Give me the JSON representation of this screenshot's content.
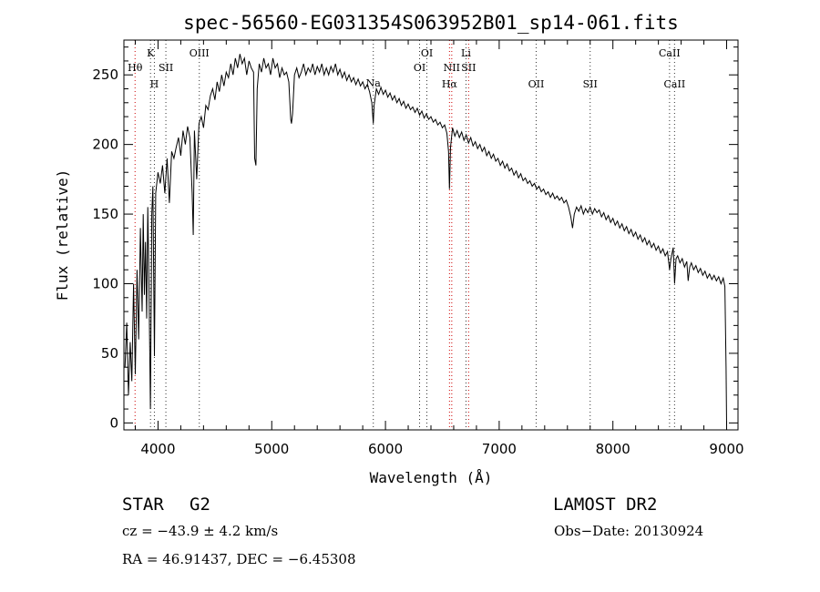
{
  "chart_data": {
    "type": "line",
    "title": "spec-56560-EG031354S063952B01_sp14-061.fits",
    "xlabel": "Wavelength (Å)",
    "ylabel": "Flux (relative)",
    "xlim": [
      3700,
      9100
    ],
    "ylim": [
      -5,
      275
    ],
    "x_ticks": [
      4000,
      5000,
      6000,
      7000,
      8000,
      9000
    ],
    "y_ticks": [
      0,
      50,
      100,
      150,
      200,
      250
    ],
    "grid": false,
    "series": [
      {
        "color": "#000000",
        "points": [
          [
            3710,
            40
          ],
          [
            3725,
            72
          ],
          [
            3740,
            20
          ],
          [
            3755,
            58
          ],
          [
            3770,
            30
          ],
          [
            3785,
            100
          ],
          [
            3800,
            35
          ],
          [
            3815,
            110
          ],
          [
            3830,
            60
          ],
          [
            3845,
            140
          ],
          [
            3860,
            80
          ],
          [
            3870,
            150
          ],
          [
            3880,
            92
          ],
          [
            3890,
            130
          ],
          [
            3900,
            75
          ],
          [
            3910,
            155
          ],
          [
            3920,
            100
          ],
          [
            3933,
            10
          ],
          [
            3945,
            150
          ],
          [
            3955,
            170
          ],
          [
            3968,
            48
          ],
          [
            3980,
            165
          ],
          [
            4000,
            180
          ],
          [
            4020,
            172
          ],
          [
            4040,
            185
          ],
          [
            4060,
            165
          ],
          [
            4080,
            190
          ],
          [
            4100,
            158
          ],
          [
            4120,
            195
          ],
          [
            4140,
            190
          ],
          [
            4160,
            198
          ],
          [
            4180,
            205
          ],
          [
            4200,
            192
          ],
          [
            4220,
            210
          ],
          [
            4240,
            200
          ],
          [
            4260,
            213
          ],
          [
            4280,
            205
          ],
          [
            4300,
            165
          ],
          [
            4310,
            135
          ],
          [
            4320,
            210
          ],
          [
            4340,
            175
          ],
          [
            4360,
            215
          ],
          [
            4380,
            220
          ],
          [
            4400,
            212
          ],
          [
            4420,
            228
          ],
          [
            4440,
            225
          ],
          [
            4460,
            235
          ],
          [
            4480,
            240
          ],
          [
            4500,
            232
          ],
          [
            4520,
            245
          ],
          [
            4540,
            238
          ],
          [
            4560,
            250
          ],
          [
            4580,
            242
          ],
          [
            4600,
            252
          ],
          [
            4620,
            248
          ],
          [
            4640,
            258
          ],
          [
            4660,
            250
          ],
          [
            4680,
            262
          ],
          [
            4700,
            255
          ],
          [
            4720,
            265
          ],
          [
            4740,
            258
          ],
          [
            4760,
            262
          ],
          [
            4780,
            250
          ],
          [
            4800,
            260
          ],
          [
            4820,
            255
          ],
          [
            4840,
            252
          ],
          [
            4850,
            190
          ],
          [
            4861,
            185
          ],
          [
            4872,
            240
          ],
          [
            4890,
            258
          ],
          [
            4910,
            252
          ],
          [
            4930,
            262
          ],
          [
            4950,
            255
          ],
          [
            4970,
            258
          ],
          [
            4990,
            250
          ],
          [
            5010,
            262
          ],
          [
            5030,
            255
          ],
          [
            5050,
            258
          ],
          [
            5070,
            248
          ],
          [
            5090,
            255
          ],
          [
            5110,
            250
          ],
          [
            5130,
            252
          ],
          [
            5150,
            245
          ],
          [
            5167,
            218
          ],
          [
            5173,
            215
          ],
          [
            5183,
            222
          ],
          [
            5200,
            250
          ],
          [
            5220,
            255
          ],
          [
            5240,
            248
          ],
          [
            5260,
            252
          ],
          [
            5280,
            258
          ],
          [
            5300,
            250
          ],
          [
            5320,
            255
          ],
          [
            5340,
            252
          ],
          [
            5360,
            258
          ],
          [
            5380,
            250
          ],
          [
            5400,
            256
          ],
          [
            5420,
            252
          ],
          [
            5440,
            258
          ],
          [
            5460,
            250
          ],
          [
            5480,
            255
          ],
          [
            5500,
            250
          ],
          [
            5520,
            256
          ],
          [
            5540,
            252
          ],
          [
            5560,
            258
          ],
          [
            5580,
            250
          ],
          [
            5600,
            254
          ],
          [
            5620,
            248
          ],
          [
            5640,
            252
          ],
          [
            5660,
            246
          ],
          [
            5680,
            250
          ],
          [
            5700,
            245
          ],
          [
            5720,
            248
          ],
          [
            5740,
            243
          ],
          [
            5760,
            247
          ],
          [
            5780,
            242
          ],
          [
            5800,
            245
          ],
          [
            5820,
            240
          ],
          [
            5840,
            243
          ],
          [
            5860,
            238
          ],
          [
            5880,
            230
          ],
          [
            5893,
            215
          ],
          [
            5900,
            228
          ],
          [
            5920,
            240
          ],
          [
            5940,
            236
          ],
          [
            5960,
            241
          ],
          [
            5980,
            236
          ],
          [
            6000,
            239
          ],
          [
            6020,
            234
          ],
          [
            6040,
            237
          ],
          [
            6060,
            232
          ],
          [
            6080,
            235
          ],
          [
            6100,
            230
          ],
          [
            6120,
            233
          ],
          [
            6140,
            228
          ],
          [
            6160,
            231
          ],
          [
            6180,
            226
          ],
          [
            6200,
            229
          ],
          [
            6220,
            225
          ],
          [
            6240,
            227
          ],
          [
            6260,
            223
          ],
          [
            6280,
            226
          ],
          [
            6300,
            221
          ],
          [
            6320,
            224
          ],
          [
            6340,
            219
          ],
          [
            6360,
            222
          ],
          [
            6380,
            218
          ],
          [
            6400,
            220
          ],
          [
            6420,
            216
          ],
          [
            6440,
            218
          ],
          [
            6460,
            214
          ],
          [
            6480,
            216
          ],
          [
            6500,
            212
          ],
          [
            6520,
            214
          ],
          [
            6540,
            208
          ],
          [
            6555,
            195
          ],
          [
            6563,
            168
          ],
          [
            6572,
            198
          ],
          [
            6590,
            212
          ],
          [
            6610,
            206
          ],
          [
            6630,
            210
          ],
          [
            6650,
            205
          ],
          [
            6670,
            209
          ],
          [
            6690,
            203
          ],
          [
            6710,
            207
          ],
          [
            6730,
            201
          ],
          [
            6750,
            205
          ],
          [
            6770,
            199
          ],
          [
            6790,
            202
          ],
          [
            6810,
            197
          ],
          [
            6830,
            200
          ],
          [
            6850,
            195
          ],
          [
            6870,
            198
          ],
          [
            6890,
            192
          ],
          [
            6910,
            195
          ],
          [
            6930,
            190
          ],
          [
            6950,
            193
          ],
          [
            6970,
            188
          ],
          [
            6990,
            190
          ],
          [
            7010,
            185
          ],
          [
            7030,
            188
          ],
          [
            7050,
            183
          ],
          [
            7070,
            186
          ],
          [
            7090,
            181
          ],
          [
            7110,
            183
          ],
          [
            7130,
            178
          ],
          [
            7150,
            181
          ],
          [
            7170,
            176
          ],
          [
            7190,
            179
          ],
          [
            7210,
            174
          ],
          [
            7230,
            176
          ],
          [
            7250,
            172
          ],
          [
            7270,
            174
          ],
          [
            7290,
            170
          ],
          [
            7310,
            172
          ],
          [
            7330,
            168
          ],
          [
            7350,
            170
          ],
          [
            7370,
            166
          ],
          [
            7390,
            168
          ],
          [
            7410,
            164
          ],
          [
            7430,
            166
          ],
          [
            7450,
            162
          ],
          [
            7470,
            165
          ],
          [
            7490,
            161
          ],
          [
            7510,
            163
          ],
          [
            7530,
            160
          ],
          [
            7550,
            162
          ],
          [
            7570,
            158
          ],
          [
            7590,
            160
          ],
          [
            7610,
            155
          ],
          [
            7630,
            148
          ],
          [
            7645,
            140
          ],
          [
            7660,
            150
          ],
          [
            7680,
            155
          ],
          [
            7700,
            152
          ],
          [
            7720,
            156
          ],
          [
            7740,
            150
          ],
          [
            7760,
            154
          ],
          [
            7780,
            151
          ],
          [
            7800,
            155
          ],
          [
            7820,
            150
          ],
          [
            7840,
            154
          ],
          [
            7860,
            151
          ],
          [
            7880,
            153
          ],
          [
            7900,
            148
          ],
          [
            7920,
            151
          ],
          [
            7940,
            146
          ],
          [
            7960,
            149
          ],
          [
            7980,
            144
          ],
          [
            8000,
            147
          ],
          [
            8020,
            142
          ],
          [
            8040,
            145
          ],
          [
            8060,
            140
          ],
          [
            8080,
            143
          ],
          [
            8100,
            138
          ],
          [
            8120,
            141
          ],
          [
            8140,
            136
          ],
          [
            8160,
            139
          ],
          [
            8180,
            134
          ],
          [
            8200,
            137
          ],
          [
            8220,
            132
          ],
          [
            8240,
            135
          ],
          [
            8260,
            130
          ],
          [
            8280,
            133
          ],
          [
            8300,
            128
          ],
          [
            8320,
            131
          ],
          [
            8340,
            126
          ],
          [
            8360,
            129
          ],
          [
            8380,
            124
          ],
          [
            8400,
            127
          ],
          [
            8420,
            122
          ],
          [
            8440,
            125
          ],
          [
            8460,
            120
          ],
          [
            8480,
            123
          ],
          [
            8498,
            110
          ],
          [
            8510,
            118
          ],
          [
            8530,
            126
          ],
          [
            8542,
            100
          ],
          [
            8555,
            118
          ],
          [
            8570,
            120
          ],
          [
            8590,
            115
          ],
          [
            8610,
            118
          ],
          [
            8630,
            112
          ],
          [
            8650,
            116
          ],
          [
            8662,
            102
          ],
          [
            8675,
            112
          ],
          [
            8690,
            115
          ],
          [
            8710,
            110
          ],
          [
            8730,
            113
          ],
          [
            8750,
            108
          ],
          [
            8770,
            111
          ],
          [
            8790,
            106
          ],
          [
            8810,
            109
          ],
          [
            8830,
            104
          ],
          [
            8850,
            107
          ],
          [
            8870,
            103
          ],
          [
            8890,
            106
          ],
          [
            8910,
            102
          ],
          [
            8930,
            105
          ],
          [
            8950,
            100
          ],
          [
            8970,
            104
          ],
          [
            8985,
            98
          ],
          [
            8995,
            40
          ],
          [
            9000,
            -2
          ]
        ]
      }
    ],
    "line_markers": [
      {
        "label": "Hθ",
        "x": 3798,
        "row": 2,
        "color": "#cc0000"
      },
      {
        "label": "K",
        "x": 3934,
        "row": 1,
        "color": "#333333"
      },
      {
        "label": "H",
        "x": 3968,
        "row": 3,
        "color": "#333333"
      },
      {
        "label": "SII",
        "x": 4069,
        "row": 2,
        "color": "#333333"
      },
      {
        "label": "OIII",
        "x": 4363,
        "row": 1,
        "color": "#333333"
      },
      {
        "label": "Na",
        "x": 5893,
        "row": 0,
        "color": "#333333"
      },
      {
        "label": "OI",
        "x": 6300,
        "row": 2,
        "color": "#333333"
      },
      {
        "label": "OI",
        "x": 6364,
        "row": 1,
        "color": "#333333"
      },
      {
        "label": "NII",
        "x": 6583,
        "row": 2,
        "color": "#cc0000"
      },
      {
        "label": "Hα",
        "x": 6563,
        "row": 3,
        "color": "#cc0000"
      },
      {
        "label": "Li",
        "x": 6708,
        "row": 1,
        "color": "#333333"
      },
      {
        "label": "SII",
        "x": 6731,
        "row": 2,
        "color": "#cc0000"
      },
      {
        "label": "OII",
        "x": 7325,
        "row": 3,
        "color": "#333333"
      },
      {
        "label": "SII",
        "x": 7800,
        "row": 3,
        "color": "#333333"
      },
      {
        "label": "CaII",
        "x": 8498,
        "row": 1,
        "color": "#333333"
      },
      {
        "label": "CaII",
        "x": 8542,
        "row": 3,
        "color": "#333333"
      }
    ]
  },
  "info": {
    "object_class": "STAR",
    "subclass": "G2",
    "survey": "LAMOST DR2",
    "cz": "cz = −43.9 ± 4.2 km/s",
    "obs_date": "Obs−Date: 20130924",
    "radec": "RA =  46.91437, DEC =  −6.45308"
  }
}
